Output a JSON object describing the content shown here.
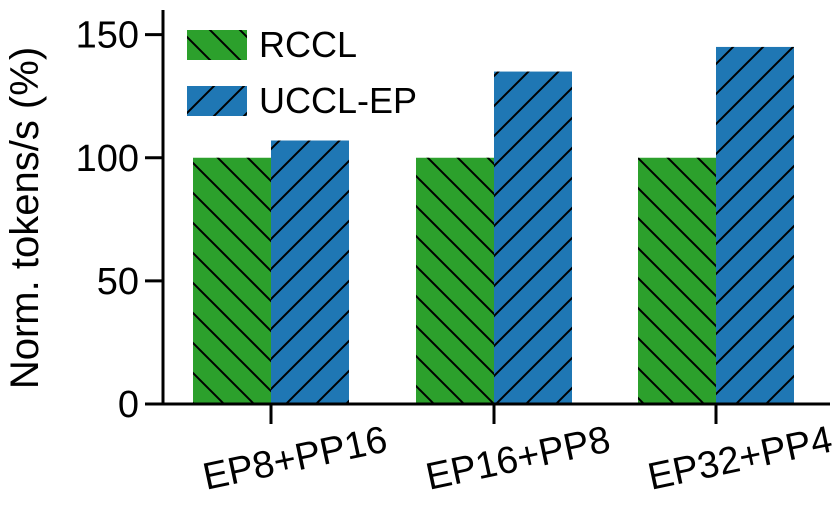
{
  "chart_data": {
    "type": "bar",
    "categories": [
      "EP8+PP16",
      "EP16+PP8",
      "EP32+PP4"
    ],
    "series": [
      {
        "name": "RCCL",
        "values": [
          100,
          100,
          100
        ],
        "color": "#2ca02c",
        "hatch": "backslash"
      },
      {
        "name": "UCCL-EP",
        "values": [
          107,
          135,
          145
        ],
        "color": "#1f77b4",
        "hatch": "slash"
      }
    ],
    "title": "",
    "xlabel": "",
    "ylabel": "Norm. tokens/s (%)",
    "ylim": [
      0,
      160
    ],
    "yticks": [
      0,
      50,
      100,
      150
    ],
    "grid": false,
    "legend_position": "top-left"
  }
}
